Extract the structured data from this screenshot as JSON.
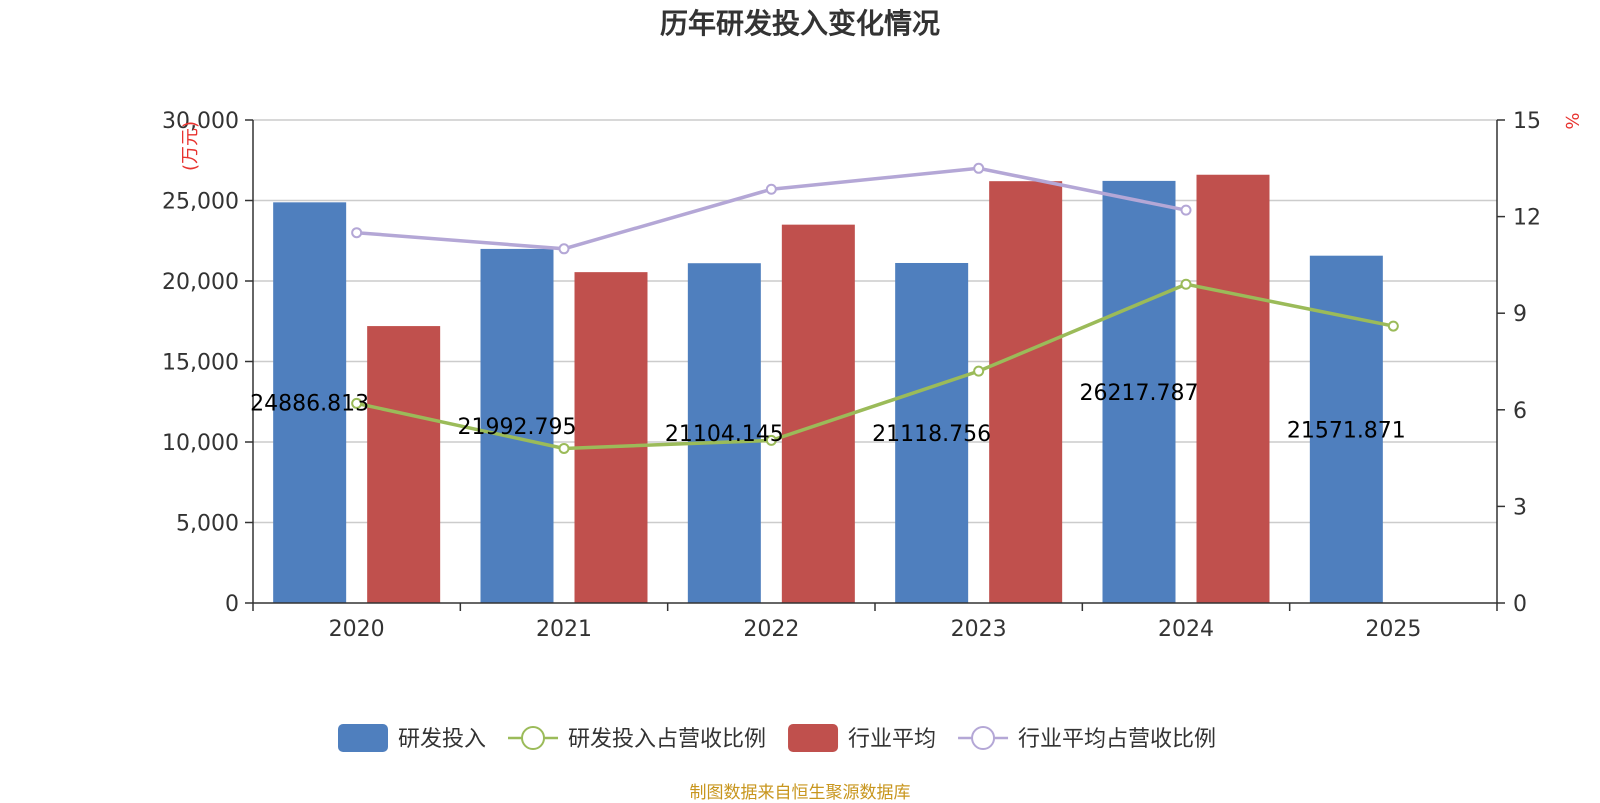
{
  "title": "历年研发投入变化情况",
  "source_note": "制图数据来自恒生聚源数据库",
  "chart_data": {
    "type": "bar",
    "title": "历年研发投入变化情况",
    "categories": [
      "2020",
      "2021",
      "2022",
      "2023",
      "2024",
      "2025"
    ],
    "left_axis": {
      "unit_label": "(万元)",
      "ylim": [
        0,
        30000
      ],
      "ticks": [
        "0",
        "5,000",
        "10,000",
        "15,000",
        "20,000",
        "25,000",
        "30,000"
      ],
      "tick_values": [
        0,
        5000,
        10000,
        15000,
        20000,
        25000,
        30000
      ]
    },
    "right_axis": {
      "unit_label": "%",
      "ylim": [
        0,
        15
      ],
      "ticks": [
        "0",
        "3",
        "6",
        "9",
        "12",
        "15"
      ],
      "tick_values": [
        0,
        3,
        6,
        9,
        12,
        15
      ]
    },
    "series": [
      {
        "name": "研发投入",
        "type": "bar",
        "axis": "left",
        "color": "#4f7fbe",
        "values": [
          24886.813,
          21992.795,
          21104.145,
          21118.756,
          26217.787,
          21571.871
        ],
        "labels": [
          "24886.813",
          "21992.795",
          "21104.145",
          "21118.756",
          "26217.787",
          "21571.871"
        ]
      },
      {
        "name": "研发投入占营收比例",
        "type": "line",
        "axis": "right",
        "color": "#9bbb59",
        "values": [
          6.2,
          4.8,
          5.05,
          7.2,
          9.9,
          8.6
        ]
      },
      {
        "name": "行业平均",
        "type": "bar",
        "axis": "left",
        "color": "#c0504d",
        "values": [
          17200,
          20550,
          23500,
          26200,
          26600,
          null
        ]
      },
      {
        "name": "行业平均占营收比例",
        "type": "line",
        "axis": "right",
        "color": "#b4a7d6",
        "values": [
          11.5,
          11.0,
          12.85,
          13.5,
          12.2,
          null
        ]
      }
    ],
    "legend_position": "bottom",
    "grid": true
  }
}
